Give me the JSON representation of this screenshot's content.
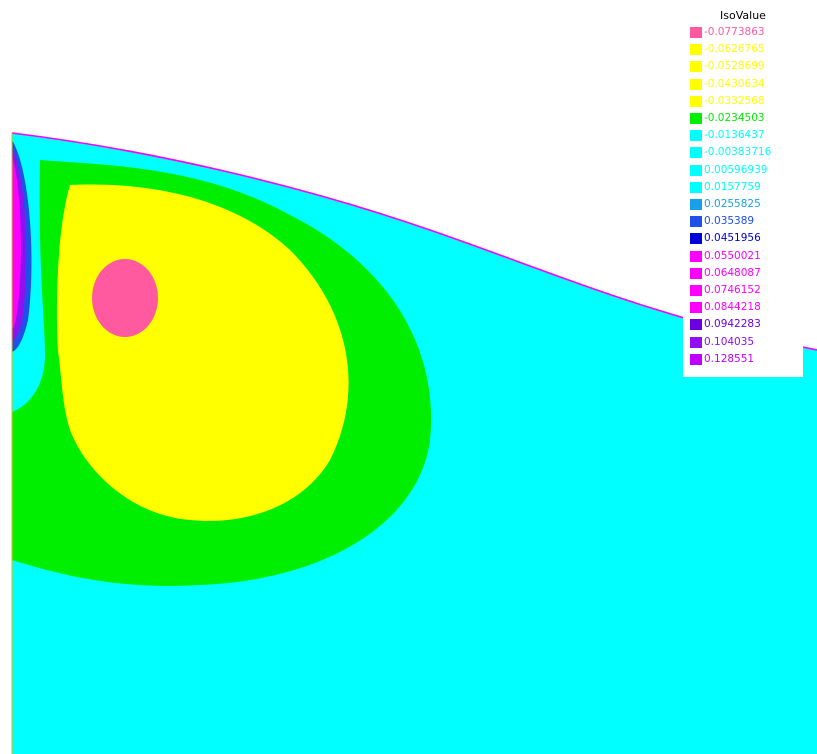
{
  "chart_data": {
    "type": "contour",
    "title": "",
    "legend": {
      "title": "IsoValue",
      "placement": "top-right",
      "entries": [
        {
          "value": "-0.0773863",
          "color": "#ff5aa0"
        },
        {
          "value": "-0.0626765",
          "color": "#ffff00"
        },
        {
          "value": "-0.0528699",
          "color": "#ffff00"
        },
        {
          "value": "-0.0430634",
          "color": "#ffff00"
        },
        {
          "value": "-0.0332568",
          "color": "#ffff00"
        },
        {
          "value": "-0.0234503",
          "color": "#00ee00"
        },
        {
          "value": "-0.0136437",
          "color": "#00ffff"
        },
        {
          "value": "-0.00383716",
          "color": "#00ffff"
        },
        {
          "value": "0.00596939",
          "color": "#00ffff"
        },
        {
          "value": "0.0157759",
          "color": "#00ffff"
        },
        {
          "value": "0.0255825",
          "color": "#1aa0e8"
        },
        {
          "value": "0.035389",
          "color": "#2050e8"
        },
        {
          "value": "0.0451956",
          "color": "#0000d8"
        },
        {
          "value": "0.0550021",
          "color": "#ff00ff"
        },
        {
          "value": "0.0648087",
          "color": "#ff00ff"
        },
        {
          "value": "0.0746152",
          "color": "#ff00ff"
        },
        {
          "value": "0.0844218",
          "color": "#ff00ff"
        },
        {
          "value": "0.0942283",
          "color": "#6a00e0"
        },
        {
          "value": "0.104035",
          "color": "#9010f0"
        },
        {
          "value": "0.128551",
          "color": "#c000ff"
        }
      ]
    },
    "regions": [
      {
        "name": "background",
        "color": "#00ffff"
      },
      {
        "name": "green-zone",
        "color": "#00ee00"
      },
      {
        "name": "yellow-zone",
        "color": "#ffff00"
      },
      {
        "name": "pink-spot",
        "color": "#ff5aa0"
      },
      {
        "name": "left-edge-band",
        "color": "#ff00ff"
      }
    ],
    "boundary_color": "#ff00ff",
    "grid": false
  }
}
